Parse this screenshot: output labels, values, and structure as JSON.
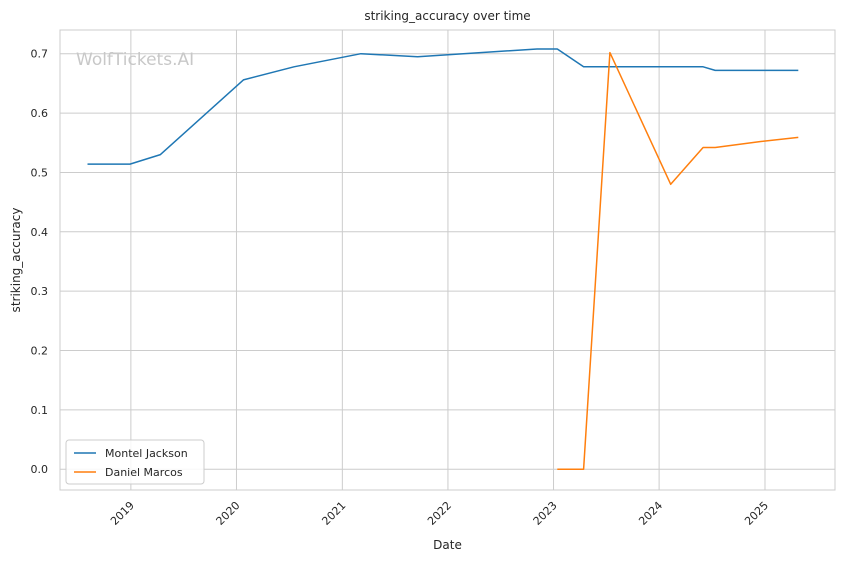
{
  "chart_data": {
    "type": "line",
    "title": "striking_accuracy over time",
    "xlabel": "Date",
    "ylabel": "striking_accuracy",
    "watermark": "WolfTickets.AI",
    "xlim": [
      "2018-05-01",
      "2025-08-31"
    ],
    "ylim": [
      -0.035,
      0.74
    ],
    "x_ticks": [
      {
        "date": "2019-01-01",
        "label": "2019"
      },
      {
        "date": "2020-01-01",
        "label": "2020"
      },
      {
        "date": "2021-01-01",
        "label": "2021"
      },
      {
        "date": "2022-01-01",
        "label": "2022"
      },
      {
        "date": "2023-01-01",
        "label": "2023"
      },
      {
        "date": "2024-01-01",
        "label": "2024"
      },
      {
        "date": "2025-01-01",
        "label": "2025"
      }
    ],
    "y_ticks": [
      {
        "value": 0.0,
        "label": "0.0"
      },
      {
        "value": 0.1,
        "label": "0.1"
      },
      {
        "value": 0.2,
        "label": "0.2"
      },
      {
        "value": 0.3,
        "label": "0.3"
      },
      {
        "value": 0.4,
        "label": "0.4"
      },
      {
        "value": 0.5,
        "label": "0.5"
      },
      {
        "value": 0.6,
        "label": "0.6"
      },
      {
        "value": 0.7,
        "label": "0.7"
      }
    ],
    "grid": true,
    "legend_position": "lower-left",
    "series": [
      {
        "name": "Montel Jackson",
        "color": "#1f77b4",
        "points": [
          {
            "x": "2018-08-04",
            "y": 0.514
          },
          {
            "x": "2018-12-29",
            "y": 0.514
          },
          {
            "x": "2019-04-13",
            "y": 0.53
          },
          {
            "x": "2020-01-25",
            "y": 0.656
          },
          {
            "x": "2020-07-18",
            "y": 0.678
          },
          {
            "x": "2021-03-06",
            "y": 0.7
          },
          {
            "x": "2021-09-18",
            "y": 0.695
          },
          {
            "x": "2022-11-05",
            "y": 0.708
          },
          {
            "x": "2023-01-14",
            "y": 0.708
          },
          {
            "x": "2023-04-15",
            "y": 0.678
          },
          {
            "x": "2024-06-01",
            "y": 0.678
          },
          {
            "x": "2024-07-13",
            "y": 0.672
          },
          {
            "x": "2025-04-26",
            "y": 0.672
          }
        ]
      },
      {
        "name": "Daniel Marcos",
        "color": "#ff7f0e",
        "points": [
          {
            "x": "2023-01-14",
            "y": 0.0
          },
          {
            "x": "2023-04-15",
            "y": 0.0
          },
          {
            "x": "2023-07-15",
            "y": 0.702
          },
          {
            "x": "2024-02-10",
            "y": 0.48
          },
          {
            "x": "2024-06-01",
            "y": 0.542
          },
          {
            "x": "2024-07-13",
            "y": 0.542
          },
          {
            "x": "2024-12-14",
            "y": 0.552
          },
          {
            "x": "2025-04-26",
            "y": 0.559
          }
        ]
      }
    ]
  }
}
